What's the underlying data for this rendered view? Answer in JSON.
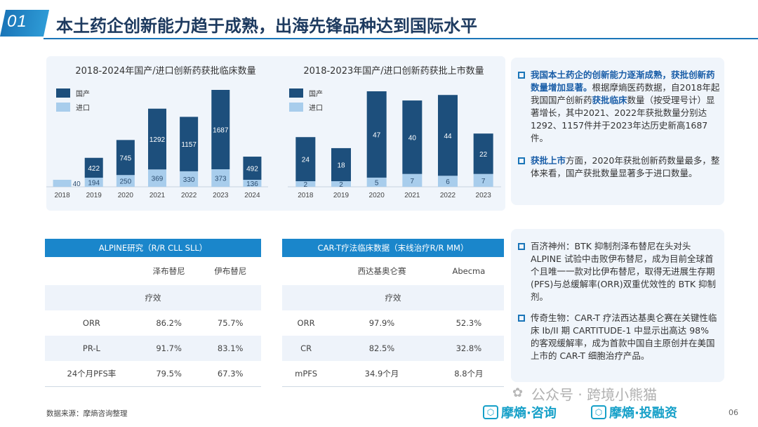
{
  "header": {
    "section_number": "01",
    "title": "本土药企创新能力趋于成熟，出海先锋品种达到国际水平"
  },
  "chart_data": [
    {
      "type": "bar",
      "title": "2018-2024年国产/进口创新药获批临床数量",
      "categories": [
        "2018",
        "2019",
        "2020",
        "2021",
        "2022",
        "2023",
        "2024"
      ],
      "stacked": true,
      "series": [
        {
          "name": "国产",
          "values": [
            null,
            422,
            745,
            1292,
            1157,
            1687,
            492
          ],
          "value_labels": [
            "",
            "422",
            "745",
            "1292",
            "1157",
            "1687",
            "492"
          ],
          "color": "#1d4f7c"
        },
        {
          "name": "进口",
          "values": [
            40,
            194,
            250,
            369,
            330,
            373,
            136
          ],
          "value_labels": [
            "40",
            "194",
            "250",
            "369",
            "330",
            "373",
            "136"
          ],
          "color": "#a8cdec"
        }
      ],
      "legend": "top-left",
      "grid": false
    },
    {
      "type": "bar",
      "title": "2018-2023年国产/进口创新药获批上市数量",
      "categories": [
        "2018",
        "2019",
        "2020",
        "2021",
        "2022",
        "2023"
      ],
      "stacked": true,
      "series": [
        {
          "name": "国产",
          "values": [
            24,
            18,
            47,
            40,
            44,
            22
          ],
          "value_labels": [
            "24",
            "18",
            "47",
            "40",
            "44",
            "22"
          ],
          "color": "#1d4f7c"
        },
        {
          "name": "进口",
          "values": [
            2,
            2,
            5,
            7,
            6,
            7
          ],
          "value_labels": [
            "2",
            "2",
            "5",
            "7",
            "6",
            "7"
          ],
          "color": "#a8cdec"
        }
      ],
      "legend": "top-left",
      "grid": false
    }
  ],
  "right_top": {
    "p1_highlight": "我国本土药企的创新能力逐渐成熟，获批创新药数量增加显著。",
    "p1_pre": "根据摩熵医药数据，自2018年起我国国产创新药",
    "p1_highlight2": "获批临床",
    "p1_post": "数量（按受理号计）显著增长，其中2021、2022年获批数量分别达1292、1157件并于2023年达历史新高1687件。",
    "p2_highlight": "获批上市",
    "p2_post": "方面，2020年获批创新药数量最多，整体来看，国产获批数量显著多于进口数量。"
  },
  "right_bottom": {
    "p1": "百济神州：BTK 抑制剂泽布替尼在头对头 ALPINE 试验中击败伊布替尼，成为目前全球首个且唯一一款对比伊布替尼，取得无进展生存期(PFS)与总缓解率(ORR)双重优效性的 BTK 抑制剂。",
    "p2": "传奇生物：CAR-T 疗法西达基奥仑赛在关键性临床 Ib/II 期 CARTITUDE-1 中显示出高达 98% 的客观缓解率，成为首款中国自主原创并在美国上市的 CAR-T 细胞治疗产品。"
  },
  "table1": {
    "title": "ALPINE研究（R/R CLL SLL）",
    "col1": "泽布替尼",
    "col2": "伊布替尼",
    "section": "疗效",
    "rows": [
      {
        "label": "ORR",
        "a": "86.2%",
        "b": "75.7%"
      },
      {
        "label": "PR-L",
        "a": "91.7%",
        "b": "83.1%"
      },
      {
        "label": "24个月PFS率",
        "a": "79.5%",
        "b": "67.3%"
      }
    ]
  },
  "table2": {
    "title": "CAR-T疗法临床数据（末线治疗R/R MM）",
    "col1": "西达基奥仑赛",
    "col2": "Abecma",
    "section": "疗效",
    "rows": [
      {
        "label": "ORR",
        "a": "97.9%",
        "b": "52.3%"
      },
      {
        "label": "CR",
        "a": "82.5%",
        "b": "32.8%"
      },
      {
        "label": "mPFS",
        "a": "34.9个月",
        "b": "8.8个月"
      }
    ]
  },
  "footer": {
    "source": "数据来源：摩熵咨询整理",
    "watermark": "公众号 · 跨境小熊猫",
    "brand1": "摩熵·咨询",
    "brand2": "摩熵·投融资",
    "page": "06"
  }
}
